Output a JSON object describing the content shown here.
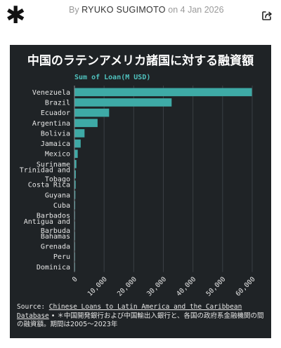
{
  "header": {
    "by_prefix": "By",
    "author": "RYUKO SUGIMOTO",
    "date_text": "on 4 Jan 2026",
    "logo_glyph": "✱",
    "share_icon": "share-icon"
  },
  "footer": {
    "source_label": "Source: ",
    "source_link": "Chinese Loans to Latin America and the Caribbean Database",
    "note": " • ＊中国開発銀行および中国輸出入銀行と、各国の政府系金融機関の間の融資額。期間は2005〜2023年"
  },
  "colors": {
    "bar": "#3eaaa6",
    "legend_text": "#4fc1bd",
    "background": "#1f2326",
    "grid": "#3a3f44"
  },
  "chart_data": {
    "type": "bar",
    "orientation": "horizontal",
    "title": "中国のラテンアメリカ諸国に対する融資額",
    "legend_label": "Sum of Loan(M USD)",
    "categories": [
      "Venezuela",
      "Brazil",
      "Ecuador",
      "Argentina",
      "Bolivia",
      "Jamaica",
      "Mexico",
      "Suriname",
      "Trinidad and Tobago",
      "Costa Rica",
      "Guyana",
      "Cuba",
      "Barbados",
      "Antigua and Barbuda",
      "Bahamas",
      "Grenada",
      "Peru",
      "Dominica"
    ],
    "category_lines": [
      [
        "Venezuela"
      ],
      [
        "Brazil"
      ],
      [
        "Ecuador"
      ],
      [
        "Argentina"
      ],
      [
        "Bolivia"
      ],
      [
        "Jamaica"
      ],
      [
        "Mexico"
      ],
      [
        "Suriname"
      ],
      [
        "Trinidad and",
        "Tobago"
      ],
      [
        "Costa Rica"
      ],
      [
        "Guyana"
      ],
      [
        "Cuba"
      ],
      [
        "Barbados"
      ],
      [
        "Antigua and",
        "Barbuda"
      ],
      [
        "Bahamas"
      ],
      [
        "Grenada"
      ],
      [
        "Peru"
      ],
      [
        "Dominica"
      ]
    ],
    "values": [
      59900,
      32800,
      11700,
      7800,
      3400,
      2100,
      1100,
      650,
      450,
      400,
      300,
      240,
      170,
      150,
      100,
      70,
      50,
      30
    ],
    "xlim": [
      0,
      60000
    ],
    "xticks": [
      0,
      10000,
      20000,
      30000,
      40000,
      50000,
      60000
    ],
    "xtick_labels": [
      "0",
      "10,000",
      "20,000",
      "30,000",
      "40,000",
      "50,000",
      "60,000"
    ],
    "grid": true
  }
}
